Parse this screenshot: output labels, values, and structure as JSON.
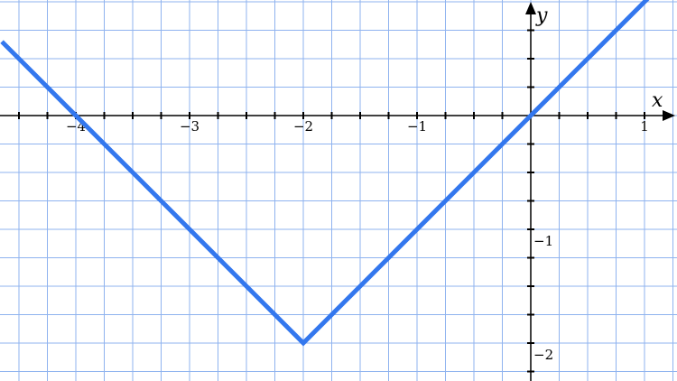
{
  "chart_data": {
    "type": "line",
    "title": "",
    "xlabel": "x",
    "ylabel": "y",
    "xlim": [
      -4.65,
      1.25
    ],
    "ylim": [
      -2.3,
      1.02
    ],
    "grid": true,
    "grid_step": 0.25,
    "x_tick_labels": [
      {
        "value": -4,
        "label": "−4"
      },
      {
        "value": -3,
        "label": "−3"
      },
      {
        "value": -2,
        "label": "−2"
      },
      {
        "value": -1,
        "label": "−1"
      },
      {
        "value": 1,
        "label": "1"
      }
    ],
    "y_tick_labels": [
      {
        "value": -1,
        "label": "−1"
      },
      {
        "value": -2,
        "label": "−2"
      }
    ],
    "series": [
      {
        "x": [
          -4.65,
          -2,
          1.05
        ],
        "y": [
          0.65,
          -2,
          1.05
        ]
      }
    ],
    "colors": {
      "line": "#3377ee",
      "grid": "#8fb3ef",
      "axis": "#000000"
    }
  }
}
